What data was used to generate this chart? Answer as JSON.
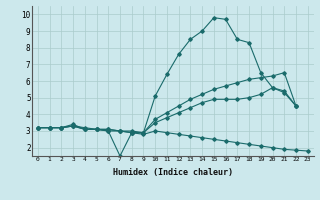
{
  "xlabel": "Humidex (Indice chaleur)",
  "bg_color": "#cce8ec",
  "grid_color": "#aacccc",
  "line_color": "#1a6b6b",
  "xlim": [
    -0.5,
    23.5
  ],
  "ylim": [
    1.5,
    10.5
  ],
  "x_ticks": [
    0,
    1,
    2,
    3,
    4,
    5,
    6,
    7,
    8,
    9,
    10,
    11,
    12,
    13,
    14,
    15,
    16,
    17,
    18,
    19,
    20,
    21,
    22,
    23
  ],
  "y_ticks": [
    2,
    3,
    4,
    5,
    6,
    7,
    8,
    9,
    10
  ],
  "series": [
    {
      "x": [
        0,
        1,
        2,
        3,
        4,
        5,
        6,
        7,
        8,
        9,
        10,
        11,
        12,
        13,
        14,
        15,
        16,
        17,
        18,
        19,
        20,
        21,
        22
      ],
      "y": [
        3.2,
        3.2,
        3.2,
        3.3,
        3.1,
        3.1,
        3.1,
        3.0,
        2.9,
        2.9,
        5.1,
        6.4,
        7.6,
        8.5,
        9.0,
        9.8,
        9.7,
        8.5,
        8.3,
        6.5,
        5.6,
        5.4,
        4.5
      ]
    },
    {
      "x": [
        0,
        1,
        2,
        3,
        4,
        5,
        6,
        7,
        8,
        9,
        10,
        11,
        12,
        13,
        14,
        15,
        16,
        17,
        18,
        19,
        20,
        21,
        22,
        23
      ],
      "y": [
        3.2,
        3.2,
        3.2,
        3.4,
        3.1,
        3.1,
        3.0,
        1.5,
        2.9,
        2.8,
        3.0,
        2.9,
        2.8,
        2.7,
        2.6,
        2.5,
        2.4,
        2.3,
        2.2,
        2.1,
        2.0,
        1.9,
        1.85,
        1.8
      ]
    },
    {
      "x": [
        0,
        1,
        2,
        3,
        4,
        5,
        6,
        7,
        8,
        9,
        10,
        11,
        12,
        13,
        14,
        15,
        16,
        17,
        18,
        19,
        20,
        21,
        22
      ],
      "y": [
        3.2,
        3.2,
        3.2,
        3.3,
        3.2,
        3.1,
        3.1,
        3.0,
        3.0,
        2.9,
        3.7,
        4.1,
        4.5,
        4.9,
        5.2,
        5.5,
        5.7,
        5.9,
        6.1,
        6.2,
        6.3,
        6.5,
        4.5
      ]
    },
    {
      "x": [
        0,
        1,
        2,
        3,
        4,
        5,
        6,
        7,
        8,
        9,
        10,
        11,
        12,
        13,
        14,
        15,
        16,
        17,
        18,
        19,
        20,
        21,
        22
      ],
      "y": [
        3.2,
        3.2,
        3.2,
        3.3,
        3.1,
        3.1,
        3.0,
        3.0,
        2.9,
        2.9,
        3.5,
        3.8,
        4.1,
        4.4,
        4.7,
        4.9,
        4.9,
        4.9,
        5.0,
        5.2,
        5.6,
        5.3,
        4.5
      ]
    }
  ]
}
